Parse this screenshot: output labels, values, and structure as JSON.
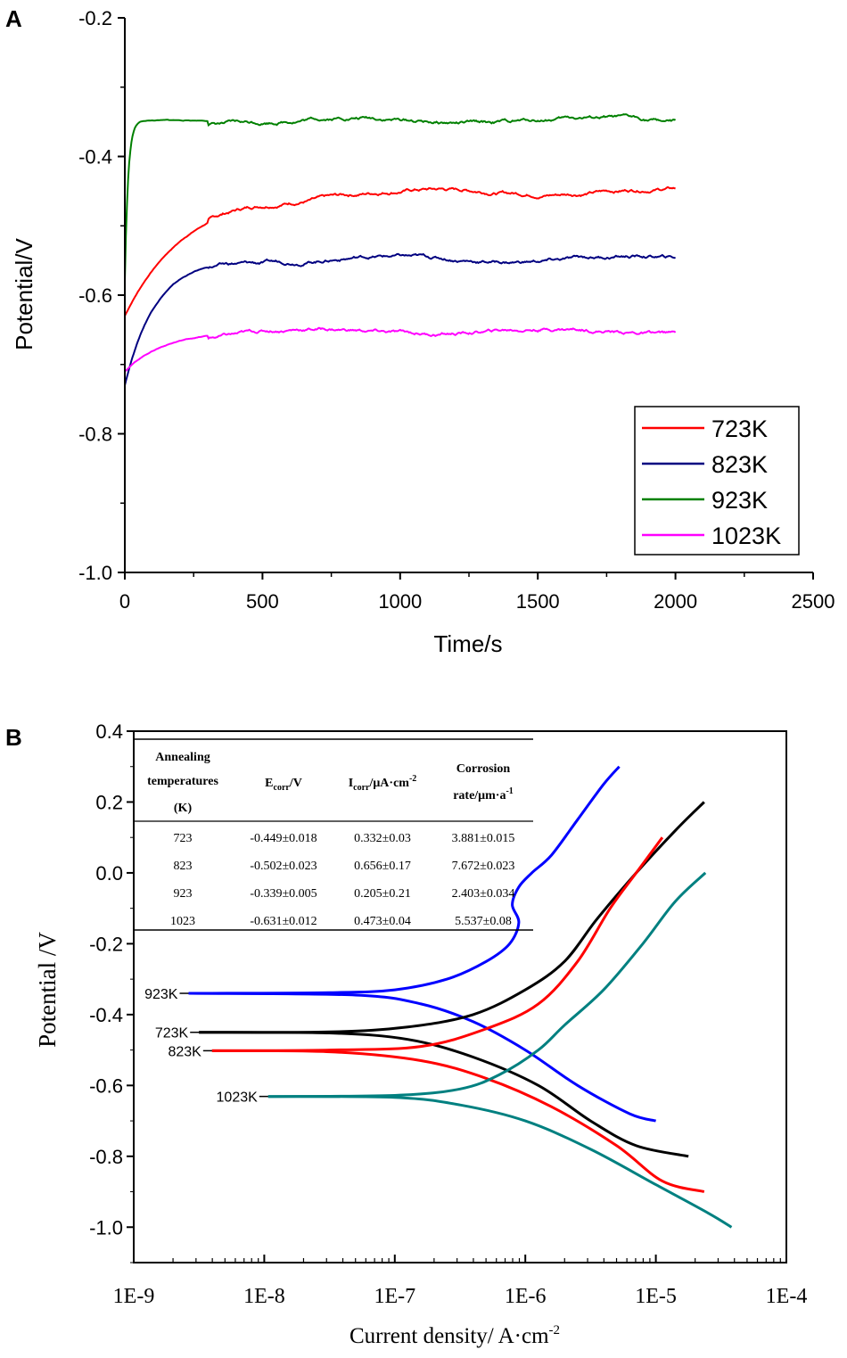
{
  "chart_data": [
    {
      "panel_label": "A",
      "type": "line",
      "title": "",
      "xlabel": "Time/s",
      "ylabel": "Potential/V",
      "xlim": [
        0,
        2500
      ],
      "ylim": [
        -1.0,
        -0.2
      ],
      "x_ticks": [
        "0",
        "500",
        "1000",
        "1500",
        "2000",
        "2500"
      ],
      "y_ticks": [
        "-1.0",
        "-0.8",
        "-0.6",
        "-0.4",
        "-0.2"
      ],
      "legend_position": "bottom-right",
      "series": [
        {
          "name": "723K",
          "color": "#ff0000",
          "start": -0.63,
          "plateau": -0.45,
          "tau": 220,
          "end_x": 2000
        },
        {
          "name": "823K",
          "color": "#000080",
          "start": -0.73,
          "plateau": -0.548,
          "tau": 110,
          "end_x": 2000
        },
        {
          "name": "923K",
          "color": "#008000",
          "start": -0.58,
          "plateau": -0.348,
          "tau": 12,
          "end_x": 2000
        },
        {
          "name": "1023K",
          "color": "#ff00ff",
          "start": -0.71,
          "plateau": -0.652,
          "tau": 140,
          "end_x": 2000
        }
      ]
    },
    {
      "panel_label": "B",
      "type": "line",
      "title": "",
      "xlabel_main": "Current density/ A·cm",
      "xlabel_sup": "-2",
      "ylabel": "Potential /V",
      "x_log_range": [
        -9,
        -4
      ],
      "ylim": [
        -1.1,
        0.4
      ],
      "x_ticks": [
        "1E-9",
        "1E-8",
        "1E-7",
        "1E-6",
        "1E-5",
        "1E-4"
      ],
      "y_ticks": [
        "-1.0",
        "-0.8",
        "-0.6",
        "-0.4",
        "-0.2",
        "0.0",
        "0.2",
        "0.4"
      ],
      "series": [
        {
          "name": "923K",
          "label": "923K",
          "color": "#0000ff",
          "anodic": [
            [
              -8.58,
              -0.34
            ],
            [
              -7.5,
              -0.338
            ],
            [
              -7.0,
              -0.33
            ],
            [
              -6.6,
              -0.3
            ],
            [
              -6.3,
              -0.25
            ],
            [
              -6.12,
              -0.2
            ],
            [
              -6.05,
              -0.14
            ],
            [
              -6.1,
              -0.09
            ],
            [
              -6.05,
              -0.04
            ],
            [
              -5.95,
              0.0
            ],
            [
              -5.8,
              0.05
            ],
            [
              -5.6,
              0.15
            ],
            [
              -5.4,
              0.25
            ],
            [
              -5.28,
              0.3
            ]
          ],
          "cathodic": [
            [
              -8.58,
              -0.34
            ],
            [
              -7.3,
              -0.345
            ],
            [
              -6.8,
              -0.37
            ],
            [
              -6.4,
              -0.42
            ],
            [
              -6.0,
              -0.5
            ],
            [
              -5.6,
              -0.6
            ],
            [
              -5.2,
              -0.68
            ],
            [
              -5.0,
              -0.7
            ]
          ]
        },
        {
          "name": "723K",
          "label": "723K",
          "color": "#000000",
          "anodic": [
            [
              -8.5,
              -0.45
            ],
            [
              -7.5,
              -0.449
            ],
            [
              -6.9,
              -0.435
            ],
            [
              -6.4,
              -0.4
            ],
            [
              -6.0,
              -0.33
            ],
            [
              -5.7,
              -0.25
            ],
            [
              -5.45,
              -0.13
            ],
            [
              -5.15,
              0.0
            ],
            [
              -4.85,
              0.12
            ],
            [
              -4.63,
              0.2
            ]
          ],
          "cathodic": [
            [
              -8.5,
              -0.45
            ],
            [
              -7.5,
              -0.452
            ],
            [
              -6.9,
              -0.47
            ],
            [
              -6.4,
              -0.52
            ],
            [
              -5.9,
              -0.6
            ],
            [
              -5.5,
              -0.7
            ],
            [
              -5.15,
              -0.77
            ],
            [
              -4.75,
              -0.8
            ]
          ]
        },
        {
          "name": "823K",
          "label": "823K",
          "color": "#ff0000",
          "anodic": [
            [
              -8.4,
              -0.502
            ],
            [
              -7.5,
              -0.5
            ],
            [
              -6.8,
              -0.49
            ],
            [
              -6.3,
              -0.44
            ],
            [
              -5.9,
              -0.37
            ],
            [
              -5.6,
              -0.25
            ],
            [
              -5.35,
              -0.1
            ],
            [
              -5.15,
              0.0
            ],
            [
              -4.95,
              0.1
            ]
          ],
          "cathodic": [
            [
              -8.4,
              -0.502
            ],
            [
              -7.5,
              -0.505
            ],
            [
              -6.8,
              -0.53
            ],
            [
              -6.3,
              -0.58
            ],
            [
              -5.8,
              -0.66
            ],
            [
              -5.3,
              -0.77
            ],
            [
              -4.95,
              -0.87
            ],
            [
              -4.63,
              -0.9
            ]
          ]
        },
        {
          "name": "1023K",
          "label": "1023K",
          "color": "#008080",
          "anodic": [
            [
              -7.97,
              -0.631
            ],
            [
              -7.0,
              -0.628
            ],
            [
              -6.5,
              -0.61
            ],
            [
              -6.2,
              -0.57
            ],
            [
              -5.9,
              -0.5
            ],
            [
              -5.7,
              -0.43
            ],
            [
              -5.4,
              -0.33
            ],
            [
              -5.1,
              -0.2
            ],
            [
              -4.85,
              -0.08
            ],
            [
              -4.62,
              0.0
            ]
          ],
          "cathodic": [
            [
              -7.97,
              -0.631
            ],
            [
              -7.0,
              -0.634
            ],
            [
              -6.5,
              -0.655
            ],
            [
              -6.0,
              -0.7
            ],
            [
              -5.5,
              -0.78
            ],
            [
              -5.0,
              -0.88
            ],
            [
              -4.6,
              -0.96
            ],
            [
              -4.42,
              -1.0
            ]
          ]
        }
      ],
      "table": {
        "headers": [
          [
            "Annealing",
            "temperatures",
            "(K)"
          ],
          [
            "E",
            "corr",
            "/V"
          ],
          [
            "I",
            "corr",
            "/μA·cm",
            "-2"
          ],
          [
            "Corrosion",
            "rate/μm·a",
            "-1"
          ]
        ],
        "rows": [
          [
            "723",
            "-0.449±0.018",
            "0.332±0.03",
            "3.881±0.015"
          ],
          [
            "823",
            "-0.502±0.023",
            "0.656±0.17",
            "7.672±0.023"
          ],
          [
            "923",
            "-0.339±0.005",
            "0.205±0.21",
            "2.403±0.034"
          ],
          [
            "1023",
            "-0.631±0.012",
            "0.473±0.04",
            "5.537±0.08"
          ]
        ]
      }
    }
  ]
}
